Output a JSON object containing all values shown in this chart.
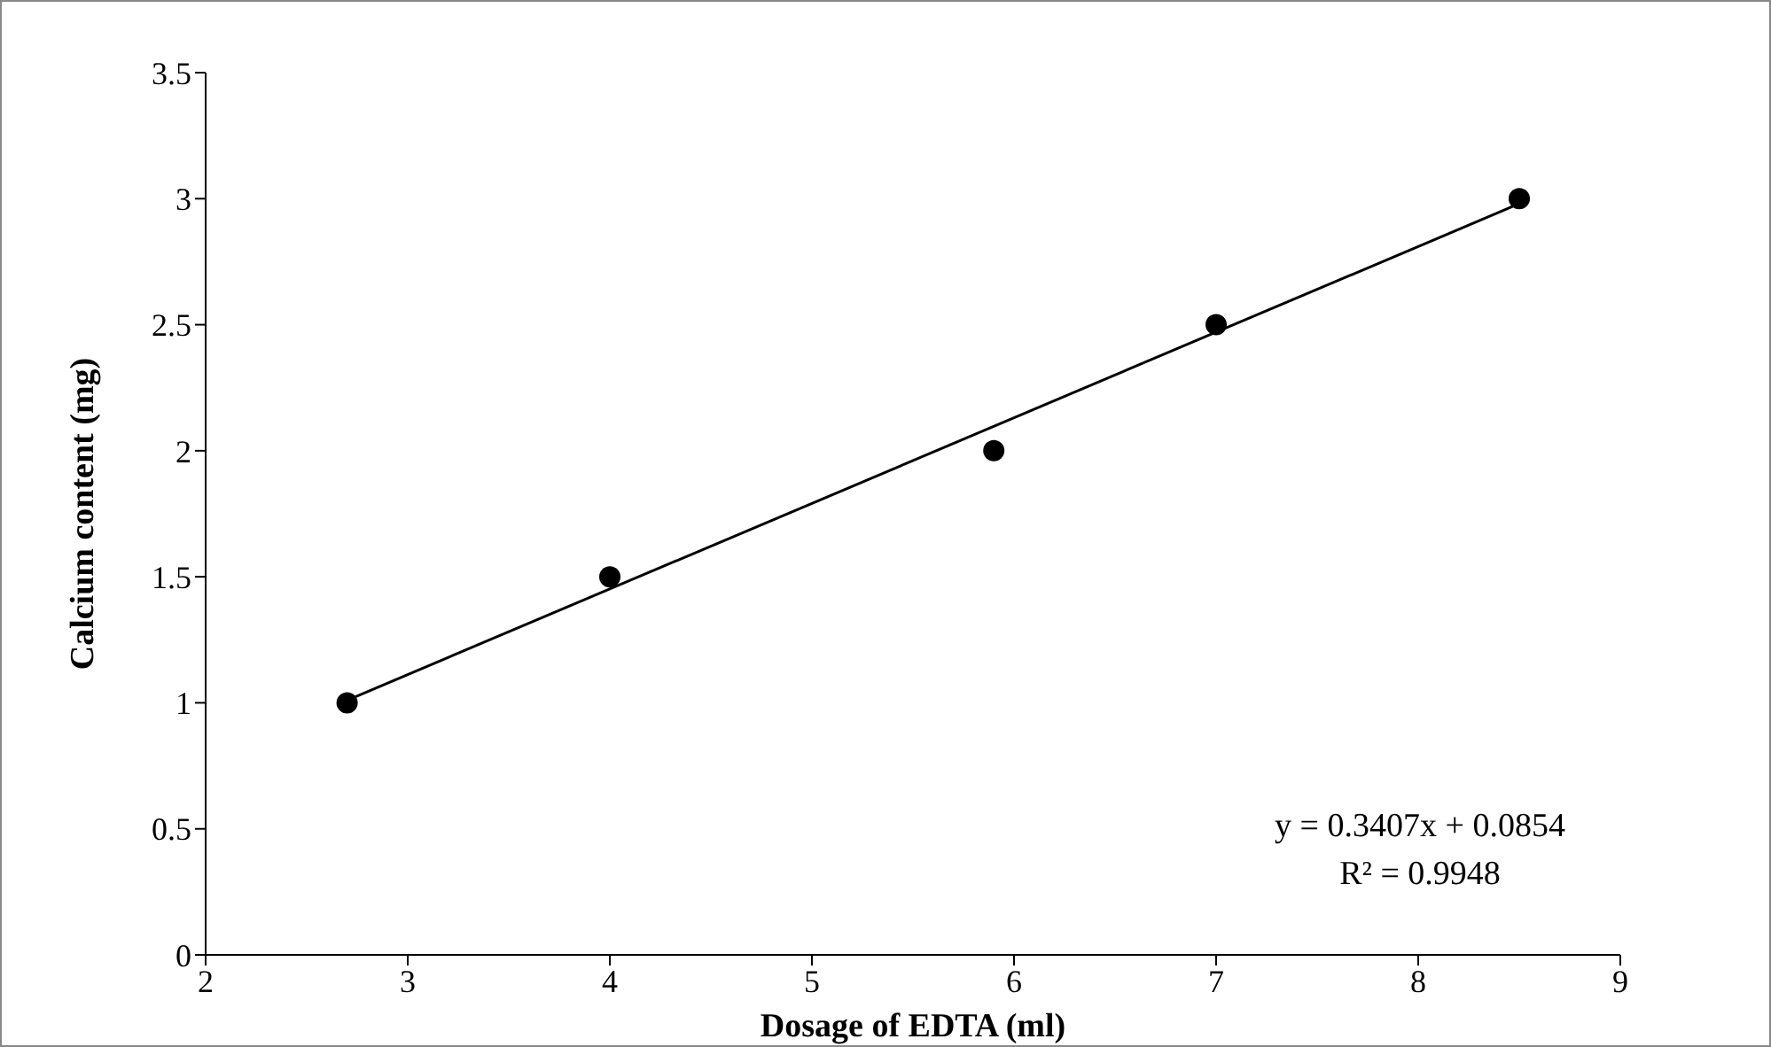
{
  "chart_data": {
    "type": "scatter",
    "xlabel": "Dosage of EDTA (ml)",
    "ylabel": "Calcium content (mg)",
    "series": [
      {
        "type": "scatter",
        "color": "#000000",
        "marker": "circle",
        "x": [
          2.7,
          4,
          5.9,
          7,
          8.5
        ],
        "values": [
          1,
          1.5,
          2,
          2.5,
          3
        ]
      },
      {
        "type": "line",
        "color": "#000000",
        "marker": "none",
        "line_style": "solid",
        "x": [
          2.7,
          8.5
        ],
        "values": [
          1.01,
          2.98
        ]
      }
    ],
    "xlim": [
      2,
      9
    ],
    "xticks": [
      2,
      3,
      4,
      5,
      6,
      7,
      8,
      9
    ],
    "ylim": [
      0,
      3.5
    ],
    "yticks": [
      0,
      0.5,
      1,
      1.5,
      2,
      2.5,
      3,
      3.5
    ],
    "grid": false,
    "legend": false,
    "annotations": [
      "y = 0.3407x + 0.0854",
      "R² = 0.9948"
    ]
  }
}
